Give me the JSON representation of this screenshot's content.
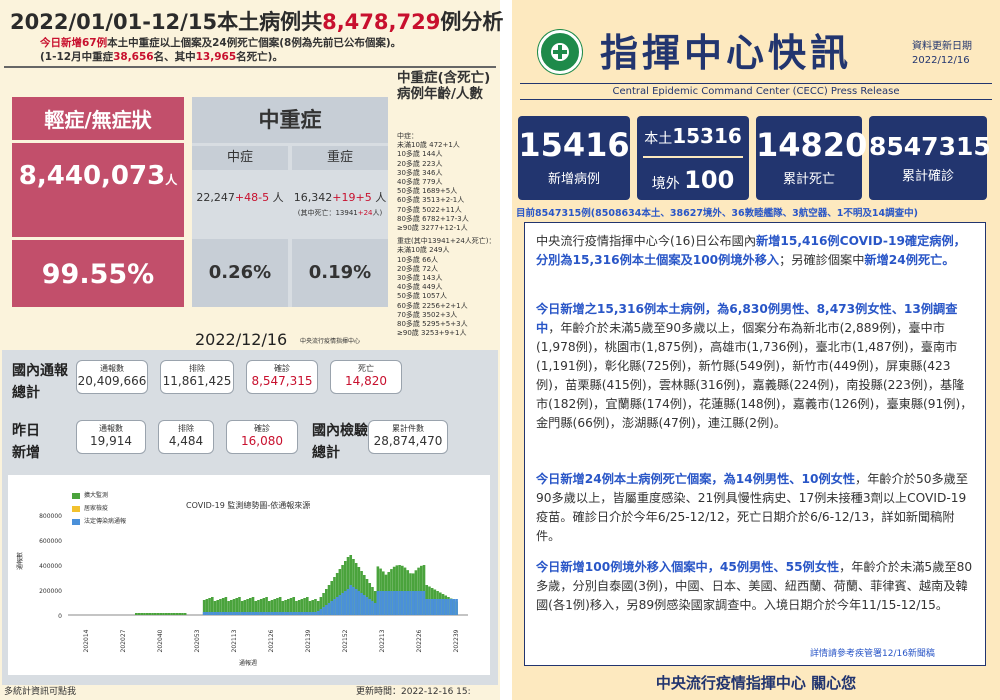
{
  "left": {
    "title": {
      "pre": "2022/01/01-12/15本土病例共",
      "count": "8,478,729",
      "post": "例分析"
    },
    "sub": {
      "line1_red": "今日新增67例",
      "line1_rest": "本土中重症以上個案及24例死亡個案(8例為先前已公布個案)。",
      "line2_pre": "(1-12月中重症",
      "line2_a": "38,656",
      "line2_mid": "名、其中",
      "line2_b": "13,965",
      "line2_post": "名死亡)。"
    },
    "mild": {
      "title": "輕症/無症狀",
      "count": "8,440,073",
      "unit": "人",
      "pct": "99.55%"
    },
    "severe": {
      "title": "中重症",
      "moderate_label": "中症",
      "serious_label": "重症",
      "moderate_val": "22,247",
      "moderate_plus": "+48",
      "moderate_minus": "-5",
      "unit": "人",
      "serious_val": "16,342",
      "serious_plus": "+19",
      "serious_minus": "+5",
      "serious_note_pre": "(其中死亡：13941",
      "serious_note_red": "+24",
      "serious_note_post": "人)",
      "moderate_pct": "0.26%",
      "serious_pct": "0.19%"
    },
    "age": {
      "title": "中重症(含死亡)病例年齡/人數",
      "mod_header": "中症：",
      "mod_rows": [
        "未滿10歲 472+1人",
        "10多歲 144人",
        "20多歲 223人",
        "30多歲 346人",
        "40多歲 779人",
        "50多歲 1689+5人",
        "60多歲 3513+2-1人",
        "70多歲 5022+11人",
        "80多歲 6782+17-3人",
        "≥90歲 3277+12-1人"
      ],
      "sev_header": "重症(其中13941+24人死亡)：",
      "sev_rows": [
        "未滿10歲 249人",
        "10多歲 66人",
        "20多歲 72人",
        "30多歲 143人",
        "40多歲 449人",
        "50多歲 1057人",
        "60多歲 2256+2+1人",
        "70多歲 3502+3人",
        "80多歲 5295+5+3人",
        "≥90歲 3253+9+1人"
      ]
    },
    "date": "2022/12/16",
    "date_src": "中央流行疫情指揮中心",
    "domestic_label": "國內通報總計",
    "domestic": [
      {
        "h": "通報數",
        "v": "20,409,666"
      },
      {
        "h": "排除",
        "v": "11,861,425"
      },
      {
        "h": "確診",
        "v": "8,547,315"
      },
      {
        "h": "死亡",
        "v": "14,820"
      }
    ],
    "yesterday_label": "昨日新增",
    "yesterday": [
      {
        "h": "通報數",
        "v": "19,914"
      },
      {
        "h": "排除",
        "v": "4,484"
      },
      {
        "h": "確診",
        "v": "16,080"
      }
    ],
    "test_label": "國內檢驗總計",
    "test": {
      "h": "累計件數",
      "v": "28,874,470"
    },
    "chart": {
      "title": "COVID-19 監測總勢圖-依通報來源",
      "legend": [
        "擴大監測",
        "居家檢疫",
        "法定傳染病通報"
      ],
      "legend_colors": [
        "#4aa33c",
        "#f2c12e",
        "#4a90d9"
      ],
      "ylabel": "通報數",
      "xlabel": "通報週",
      "yticks": [
        "800000",
        "600000",
        "400000",
        "200000",
        "0"
      ],
      "xticks": [
        "202014",
        "202027",
        "202040",
        "202053",
        "202113",
        "202126",
        "202139",
        "202152",
        "202213",
        "202226",
        "202239"
      ]
    },
    "footer_left": "多統計資訊可點我",
    "footer_right": "更新時間：2022-12-16 15:"
  },
  "right": {
    "title": "指揮中心快訊",
    "update_label": "資料更新日期",
    "update_date": "2022/12/16",
    "subtitle": "Central Epidemic Command Center (CECC)  Press Release",
    "boxes": {
      "new_cases": "15416",
      "new_cases_lbl": "新增病例",
      "local_lbl": "本土",
      "local": "15316",
      "imported_lbl": "境外",
      "imported": "100",
      "deaths": "14820",
      "deaths_lbl": "累計死亡",
      "total": "8547315",
      "total_lbl": "累計確診"
    },
    "note": "目前8547315例(8508634本土、38627境外、36敦睦艦隊、3航空器、1不明及14調查中)",
    "p1": {
      "a": "中央流行疫情指揮中心今(16)日公布國內",
      "b": "新增15,416例COVID-19確定病例，分別為15,316例本土個案及100例境外移入",
      "c": "；另確診個案中",
      "d": "新增24例死亡。"
    },
    "p2": {
      "a": "今日新增之15,316例本土病例，為6,830例男性、8,473例女性、13例調查中",
      "b": "，年齡介於未滿5歲至90多歲以上，個案分布為新北市(2,889例)，臺中市(1,978例)，桃園市(1,875例)，高雄市(1,736例)，臺北市(1,487例)，臺南市(1,191例)，彰化縣(725例)，新竹縣(549例)，新竹市(449例)，屏東縣(423例)，苗栗縣(415例)，雲林縣(316例)，嘉義縣(224例)，南投縣(223例)，基隆市(182例)，宜蘭縣(174例)，花蓮縣(148例)，嘉義市(126例)，臺東縣(91例)，金門縣(66例)，澎湖縣(47例)，連江縣(2例)。"
    },
    "p3": {
      "a": "今日新增24例本土病例死亡個案，為14例男性、10例女性",
      "b": "，年齡介於50多歲至90多歲以上，皆屬重度感染、21例具慢性病史、17例未接種3劑以上COVID-19疫苗。確診日介於今年6/25-12/12，死亡日期介於6/6-12/13，詳如新聞稿附件。"
    },
    "p4": {
      "a": "今日新增100例境外移入個案中，45例男性、55例女性",
      "b": "，年齡介於未滿5歲至80多歲，分別自泰國(3例)，中國、日本、美國、紐西蘭、荷蘭、菲律賓、越南及韓國(各1例)移入，另89例感染國家調查中。入境日期介於今年11/15-12/15。"
    },
    "ref": "詳情請參考疾管署12/16新聞稿",
    "footer": "中央流行疫情指揮中心 關心您"
  }
}
